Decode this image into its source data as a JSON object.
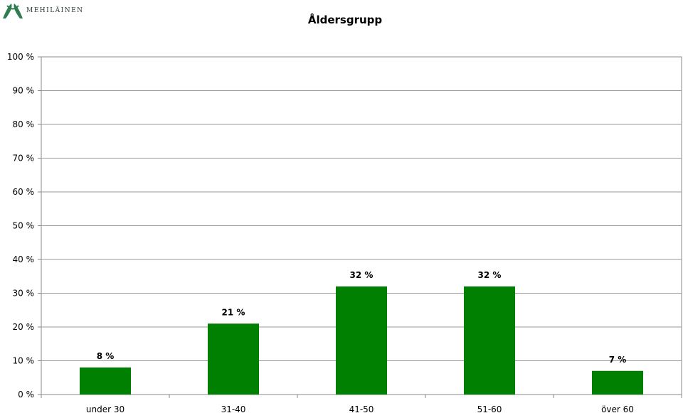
{
  "logo": {
    "text": "MEHILÄINEN",
    "color": "#2e7d4f"
  },
  "chart_data": {
    "type": "bar",
    "title": "Åldersgrupp",
    "xlabel": "",
    "ylabel": "",
    "categories": [
      "under 30",
      "31-40",
      "41-50",
      "51-60",
      "över 60"
    ],
    "values": [
      8,
      21,
      32,
      32,
      7
    ],
    "value_labels": [
      "8 %",
      "21 %",
      "32 %",
      "32 %",
      "7 %"
    ],
    "ylim": [
      0,
      100
    ],
    "yticks": [
      0,
      10,
      20,
      30,
      40,
      50,
      60,
      70,
      80,
      90,
      100
    ],
    "ytick_labels": [
      "0 %",
      "10 %",
      "20 %",
      "30 %",
      "40 %",
      "50 %",
      "60 %",
      "70 %",
      "80 %",
      "90 %",
      "100 %"
    ],
    "grid": true,
    "legend": "none",
    "bar_color": "#008000"
  }
}
